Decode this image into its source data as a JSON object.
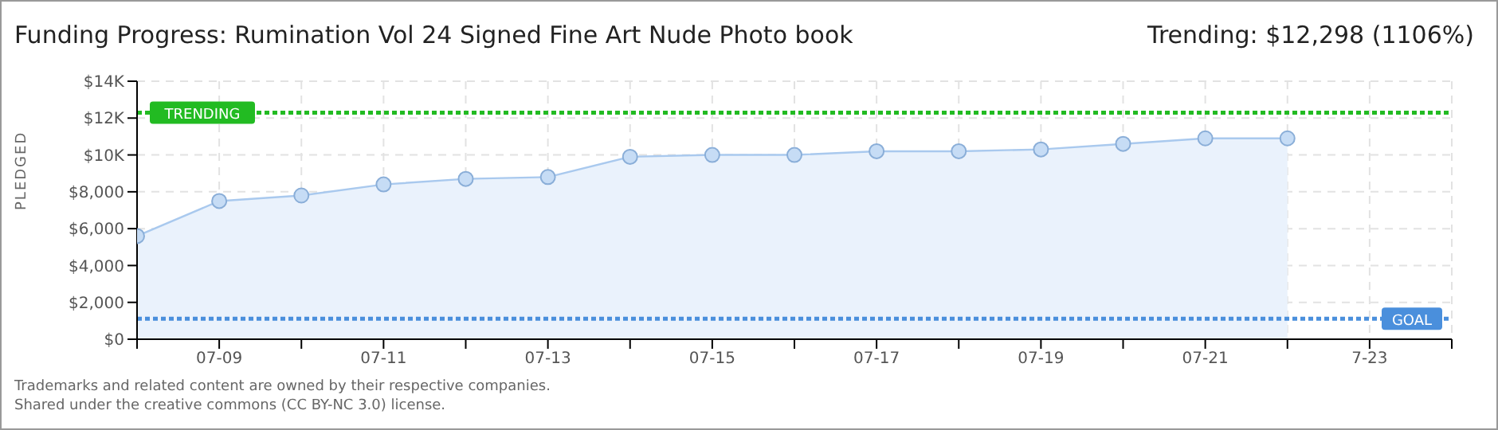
{
  "chart_data": {
    "type": "area",
    "title": "Funding Progress: Rumination Vol 24 Signed Fine Art Nude Photo book",
    "subtitle": "Trending: $12,298 (1106%)",
    "ylabel": "PLEDGED",
    "x": [
      "--07-08",
      "--07-09",
      "--07-10",
      "--07-11",
      "--07-12",
      "--07-13",
      "--07-14",
      "--07-15",
      "--07-16",
      "--07-17",
      "--07-18",
      "--07-19",
      "--07-20",
      "--07-21",
      "--07-22"
    ],
    "series": [
      {
        "color": "#a9c9ee",
        "values": [
          5600,
          7500,
          7800,
          8400,
          8700,
          8800,
          9900,
          10000,
          10000,
          10200,
          10200,
          10300,
          10600,
          10900,
          10900
        ]
      }
    ],
    "xlim": [
      "--07-08",
      "--07-24"
    ],
    "xticks": [
      {
        "value": "--07-08",
        "label": null
      },
      {
        "value": "--07-09",
        "label": "07-09"
      },
      {
        "value": "--07-10",
        "label": null
      },
      {
        "value": "--07-11",
        "label": "07-11"
      },
      {
        "value": "--07-12",
        "label": null
      },
      {
        "value": "--07-13",
        "label": "07-13"
      },
      {
        "value": "--07-14",
        "label": null
      },
      {
        "value": "--07-15",
        "label": "07-15"
      },
      {
        "value": "--07-16",
        "label": null
      },
      {
        "value": "--07-17",
        "label": "07-17"
      },
      {
        "value": "--07-18",
        "label": null
      },
      {
        "value": "--07-19",
        "label": "07-19"
      },
      {
        "value": "--07-20",
        "label": null
      },
      {
        "value": "--07-21",
        "label": "07-21"
      },
      {
        "value": "--07-22",
        "label": null
      },
      {
        "value": "--07-23",
        "label": "7-23"
      },
      {
        "value": "--07-24",
        "label": null
      }
    ],
    "ylim": [
      0,
      14000
    ],
    "yticks": [
      {
        "value": 0,
        "label": "$0"
      },
      {
        "value": 2000,
        "label": "$2,000"
      },
      {
        "value": 4000,
        "label": "$4,000"
      },
      {
        "value": 6000,
        "label": "$6,000"
      },
      {
        "value": 8000,
        "label": "$8,000"
      },
      {
        "value": 10000,
        "label": "$10K"
      },
      {
        "value": 12000,
        "label": "$12K"
      },
      {
        "value": 14000,
        "label": "$14K"
      }
    ],
    "ref_lines": [
      {
        "axis": "y",
        "value": 12298,
        "label": "TRENDING",
        "color": "#22bb22",
        "line_style": "dotted"
      },
      {
        "axis": "y",
        "value": 1112,
        "label": "GOAL",
        "color": "#4a8fdc",
        "line_style": "dotted"
      }
    ],
    "grid": true,
    "marker": "circle",
    "line_style": "solid",
    "annotations": [
      "Trademarks and related content are owned by their respective companies.",
      "Shared under the creative commons (CC BY-NC 3.0) license."
    ]
  }
}
